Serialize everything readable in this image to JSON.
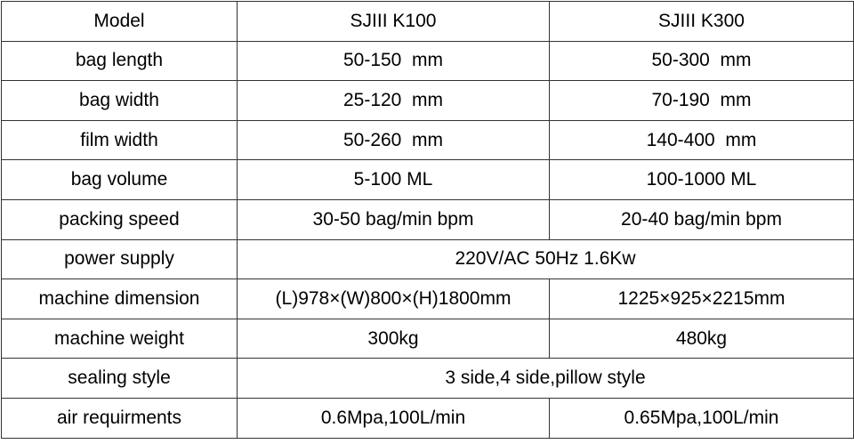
{
  "table": {
    "header": [
      "Model",
      "SJIII K100",
      "SJIII K300"
    ],
    "rows": [
      {
        "label": "bag length",
        "k100": "50-150  mm",
        "k300": "50-300  mm"
      },
      {
        "label": "bag width",
        "k100": "25-120  mm",
        "k300": "70-190  mm"
      },
      {
        "label": "film width",
        "k100": "50-260  mm",
        "k300": "140-400  mm"
      },
      {
        "label": "bag volume",
        "k100": "5-100 ML",
        "k300": "100-1000 ML"
      },
      {
        "label": "packing speed",
        "k100": "30-50 bag/min bpm",
        "k300": "20-40 bag/min bpm"
      },
      {
        "label": "power supply",
        "shared": "220V/AC 50Hz 1.6Kw"
      },
      {
        "label": "machine dimension",
        "k100": "(L)978×(W)800×(H)1800mm",
        "k300": "1225×925×2215mm"
      },
      {
        "label": "machine weight",
        "k100": "300kg",
        "k300": "480kg"
      },
      {
        "label": "sealing style",
        "shared": "3 side,4 side,pillow style"
      },
      {
        "label": "air requirments",
        "k100": "0.6Mpa,100L/min",
        "k300": "0.65Mpa,100L/min"
      }
    ]
  }
}
